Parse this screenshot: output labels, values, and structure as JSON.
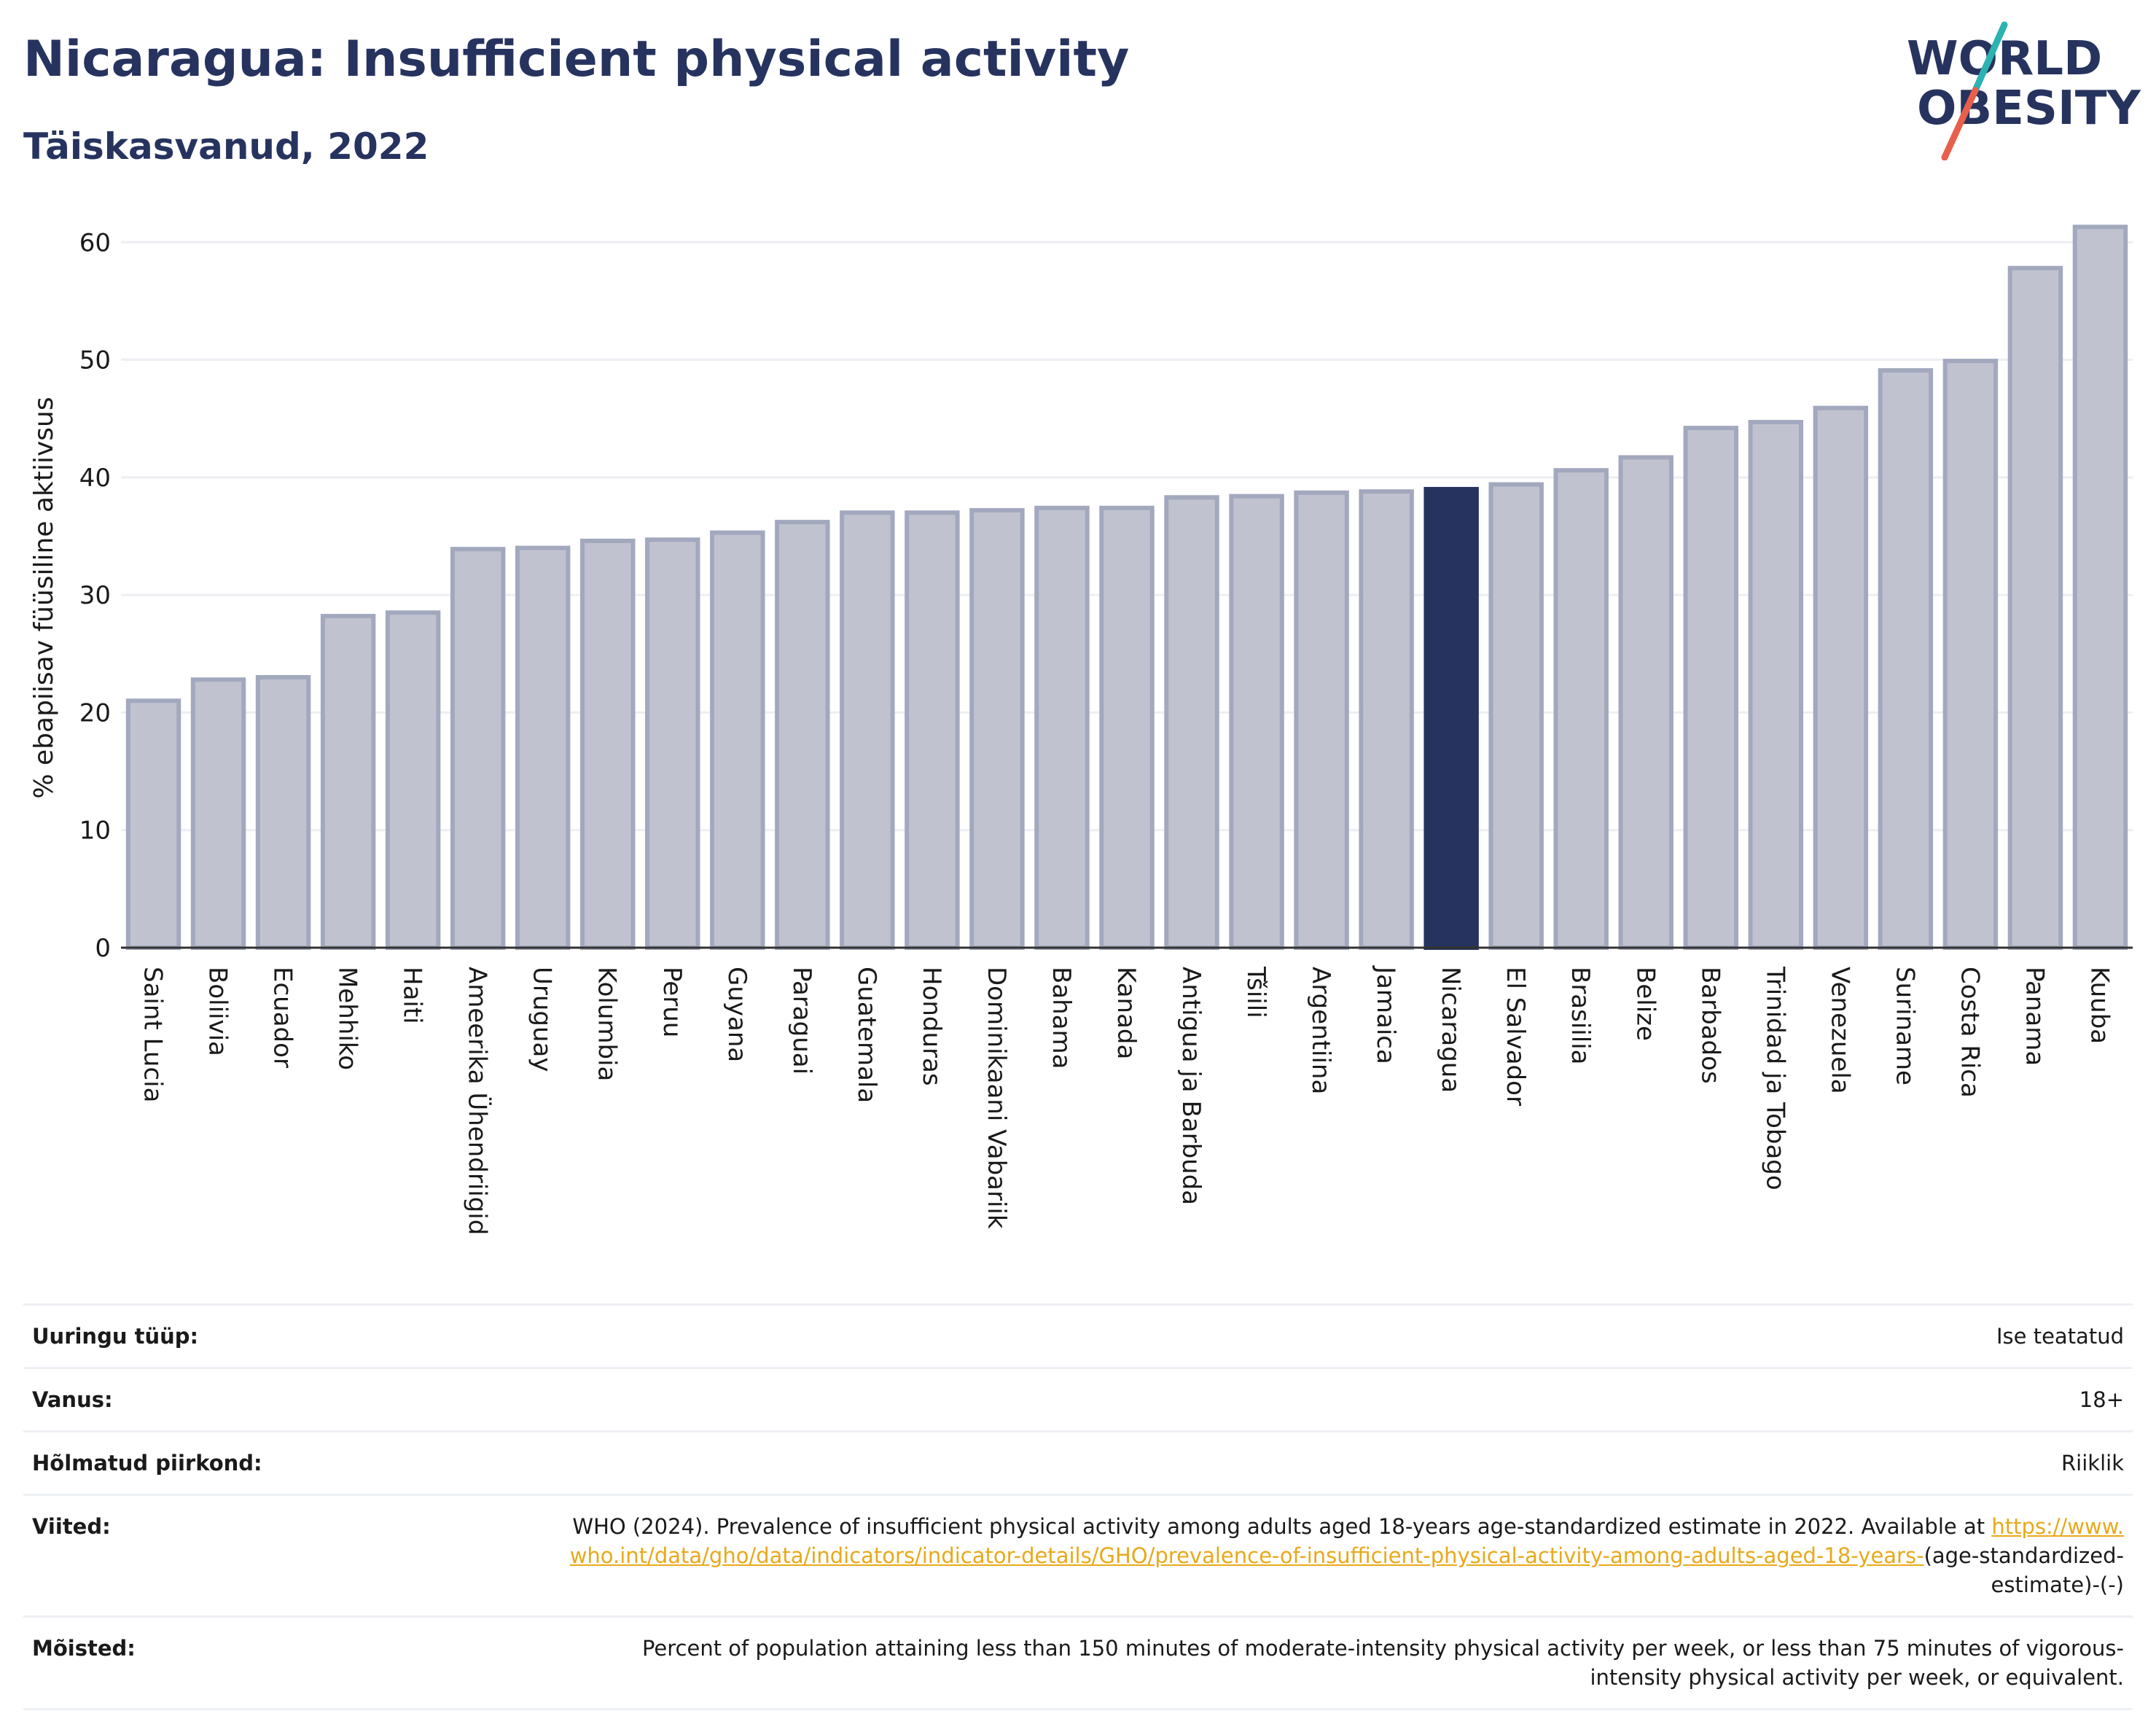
{
  "header": {
    "title": "Nicaragua: Insufficient physical activity",
    "subtitle": "Täiskasvanud, 2022"
  },
  "logo": {
    "line1": "WORLD",
    "line2": "OBESITY",
    "colors": {
      "text": "#27335f",
      "slash_top": "#2bb3b1",
      "slash_bottom": "#e8604c"
    }
  },
  "colors": {
    "bar_default": "#c0c3cf",
    "bar_default_edge": "#a2a8bd",
    "bar_highlight": "#27335f",
    "grid": "#eceef3",
    "link": "#e8a91a"
  },
  "chart_data": {
    "type": "bar",
    "ylabel": "% ebapiisav füüsiline aktiivsus",
    "xlabel": "",
    "ylim": [
      0,
      62
    ],
    "yticks": [
      0,
      10,
      20,
      30,
      40,
      50,
      60
    ],
    "grid": true,
    "highlight": "Nicaragua",
    "categories": [
      "Saint Lucia",
      "Boliivia",
      "Ecuador",
      "Mehhiko",
      "Haiti",
      "Ameerika Ühendriigid",
      "Uruguay",
      "Kolumbia",
      "Peruu",
      "Guyana",
      "Paraguai",
      "Guatemala",
      "Honduras",
      "Dominikaani Vabariik",
      "Bahama",
      "Kanada",
      "Antigua ja Barbuda",
      "Tšiili",
      "Argentiina",
      "Jamaica",
      "Nicaragua",
      "El Salvador",
      "Brasiilia",
      "Belize",
      "Barbados",
      "Trinidad ja Tobago",
      "Venezuela",
      "Suriname",
      "Costa Rica",
      "Panama",
      "Kuuba"
    ],
    "values": [
      21.0,
      22.8,
      23.0,
      28.2,
      28.5,
      33.9,
      34.0,
      34.6,
      34.7,
      35.3,
      36.2,
      37.0,
      37.0,
      37.2,
      37.4,
      37.4,
      38.3,
      38.4,
      38.7,
      38.8,
      39.0,
      39.4,
      40.6,
      41.7,
      44.2,
      44.7,
      45.9,
      49.1,
      49.9,
      57.8,
      61.3
    ]
  },
  "meta": {
    "rows": [
      {
        "label": "Uuringu tüüp:",
        "value": "Ise teatatud"
      },
      {
        "label": "Vanus:",
        "value": "18+"
      },
      {
        "label": "Hõlmatud piirkond:",
        "value": "Riiklik"
      }
    ],
    "references": {
      "label": "Viited:",
      "text": "WHO (2024). Prevalence of insufficient physical activity among adults aged 18-years age-standardized estimate in 2022. Available at",
      "link": "https://www.who.int/data/gho/data/indicators/indicator-details/GHO/prevalence-of-insufficient-physical-activity-among-adults-aged-18-years-",
      "suffix": "(age-standardized-estimate)-(-)"
    },
    "definitions": {
      "label": "Mõisted:",
      "text": "Percent of population attaining less than 150 minutes of moderate-intensity physical activity per week, or less than 75 minutes of vigorous-intensity physical activity per week, or equivalent."
    }
  }
}
